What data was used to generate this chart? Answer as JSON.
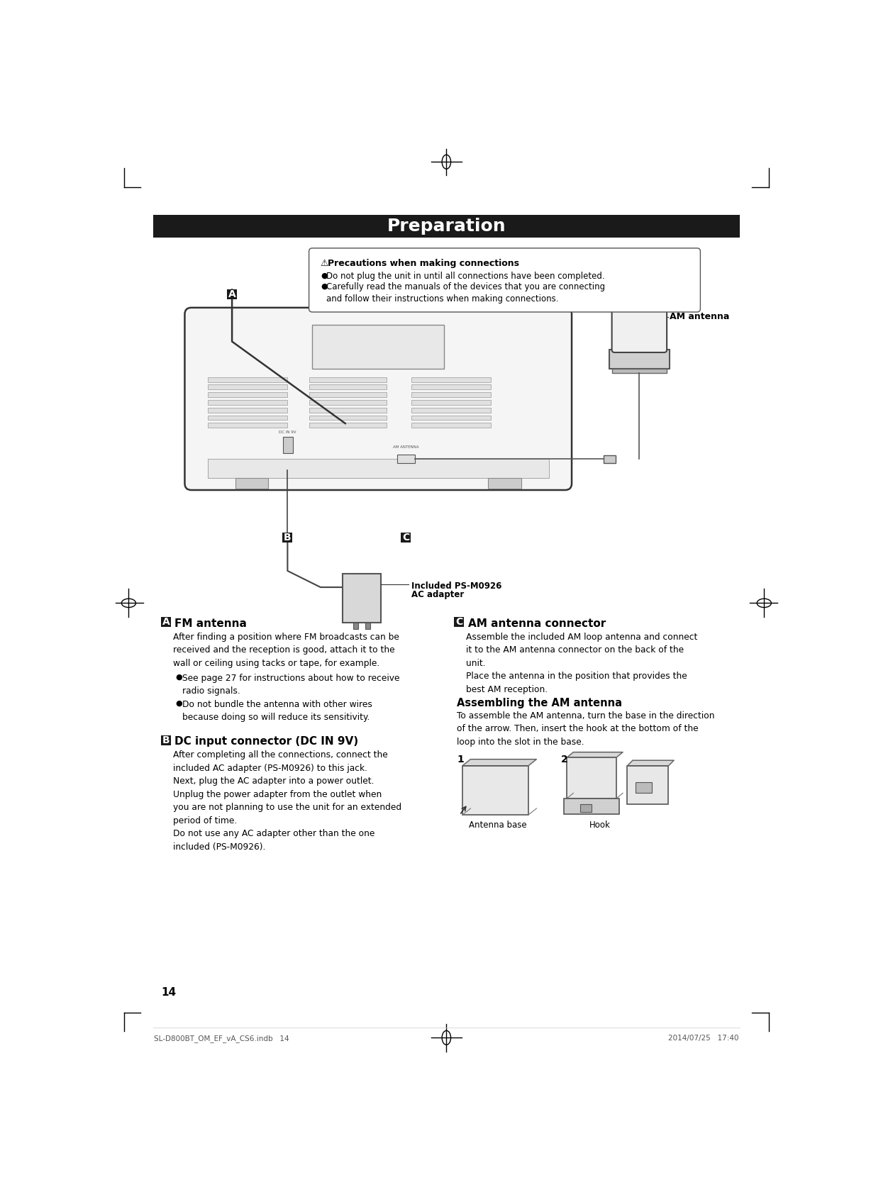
{
  "title": "Preparation",
  "title_bg": "#1a1a1a",
  "title_color": "#ffffff",
  "page_bg": "#ffffff",
  "page_number": "14",
  "footer_left": "SL-D800BT_OM_EF_vA_CS6.indb   14",
  "footer_right": "2014/07/25   17:40",
  "section_A_header": "FM antenna",
  "section_A_para": "After finding a position where FM broadcasts can be\nreceived and the reception is good, attach it to the\nwall or ceiling using tacks or tape, for example.",
  "section_A_bullet1": "See page 27 for instructions about how to receive\nradio signals.",
  "section_A_bullet2": "Do not bundle the antenna with other wires\nbecause doing so will reduce its sensitivity.",
  "section_B_header": "DC input connector (DC IN 9V)",
  "section_B_para": "After completing all the connections, connect the\nincluded AC adapter (PS-M0926) to this jack.\nNext, plug the AC adapter into a power outlet.\nUnplug the power adapter from the outlet when\nyou are not planning to use the unit for an extended\nperiod of time.\nDo not use any AC adapter other than the one\nincluded (PS-M0926).",
  "section_C_header": "AM antenna connector",
  "section_C_para": "Assemble the included AM loop antenna and connect\nit to the AM antenna connector on the back of the\nunit.\nPlace the antenna in the position that provides the\nbest AM reception.",
  "assembling_header": "Assembling the AM antenna",
  "assembling_body": "To assemble the AM antenna, turn the base in the direction\nof the arrow. Then, insert the hook at the bottom of the\nloop into the slot in the base.",
  "label_antenna_base": "Antenna base",
  "label_hook": "Hook",
  "label_1": "1",
  "label_2": "2",
  "precaution_header": "Precautions when making connections",
  "precaution_bullet1": "Do not plug the unit in until all connections have been completed.",
  "precaution_bullet2": "Carefully read the manuals of the devices that you are connecting\nand follow their instructions when making connections.",
  "label_AM_antenna": "AM antenna",
  "label_included_line1": "Included PS-M0926",
  "label_included_line2": "AC adapter",
  "label_A": "A",
  "label_B": "B",
  "label_C": "C",
  "black_box_color": "#1a1a1a",
  "label_text_color": "#ffffff",
  "device_color": "#f5f5f5",
  "device_edge": "#333333",
  "slot_color": "#e0e0e0",
  "slot_edge": "#999999"
}
